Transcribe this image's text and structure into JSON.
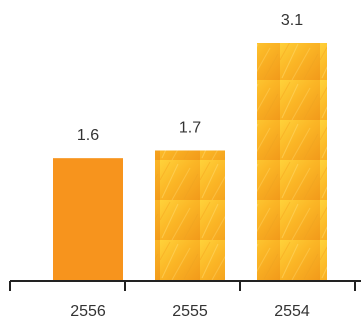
{
  "chart_data": {
    "type": "bar",
    "title": "",
    "xlabel": "",
    "ylabel": "",
    "categories": [
      "2556",
      "2555",
      "2554"
    ],
    "values": [
      1.6,
      1.7,
      3.1
    ],
    "data_labels": [
      "1.6",
      "1.7",
      "3.1"
    ],
    "ylim": [
      0,
      3.1
    ],
    "grid": false,
    "legend": "none",
    "colors": {
      "first_bar": "#F7941D",
      "textured_bar_light": "#FFD23A",
      "textured_bar_mid": "#FBB626",
      "textured_bar_dark": "#F29A1A",
      "axis": "#222222",
      "label": "#333333"
    }
  }
}
